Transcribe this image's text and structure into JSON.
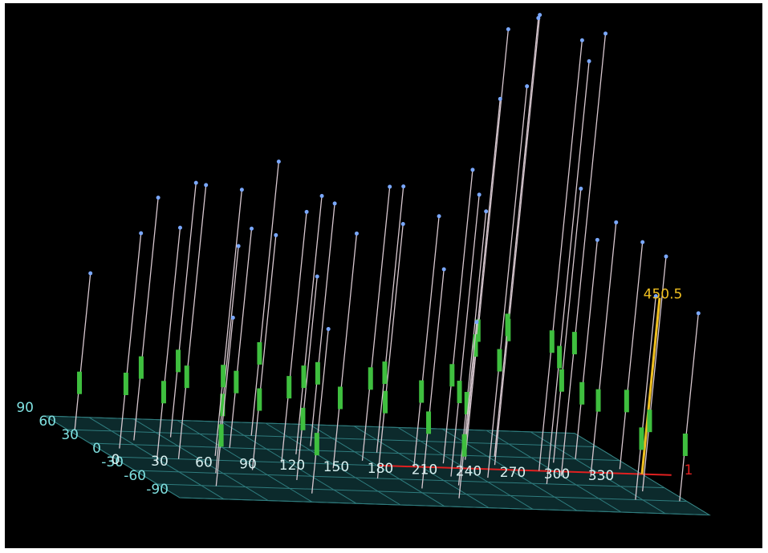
{
  "chart_data": {
    "type": "spike3d",
    "xlim": [
      0,
      360
    ],
    "ylim": [
      -90,
      90
    ],
    "zlim": [
      0,
      450.5
    ],
    "xticks": [
      0,
      30,
      60,
      90,
      120,
      150,
      180,
      210,
      240,
      270,
      300,
      330
    ],
    "yticks": [
      90,
      60,
      30,
      0,
      -30,
      -60,
      -90
    ],
    "zticks": [
      450.5
    ],
    "annotation": "1",
    "color": "#d8c8d0",
    "x": [
      5,
      15,
      25,
      35,
      45,
      55,
      65,
      75,
      85,
      95,
      105,
      115,
      125,
      135,
      145,
      155,
      165,
      175,
      185,
      195,
      205,
      215,
      220,
      230,
      245,
      250,
      260,
      265,
      275,
      280,
      290,
      300,
      310,
      320,
      325,
      330,
      340,
      350,
      355,
      200,
      100,
      40
    ],
    "y": [
      60,
      20,
      -10,
      40,
      0,
      -30,
      50,
      10,
      -20,
      30,
      -40,
      0,
      60,
      20,
      -10,
      40,
      -30,
      10,
      -50,
      30,
      0,
      -40,
      -20,
      10,
      -20,
      20,
      40,
      10,
      30,
      -30,
      0,
      -10,
      20,
      -10,
      -60,
      30,
      -40,
      10,
      -60,
      -70,
      -70,
      -60
    ],
    "values": [
      400,
      550,
      600,
      620,
      700,
      580,
      650,
      680,
      600,
      560,
      520,
      640,
      700,
      660,
      600,
      620,
      650,
      700,
      560,
      680,
      640,
      700,
      720,
      750,
      1000,
      1100,
      900,
      1150,
      1120,
      1080,
      1100,
      1130,
      700,
      650,
      520,
      560,
      600,
      580,
      480,
      450,
      420,
      430
    ]
  }
}
